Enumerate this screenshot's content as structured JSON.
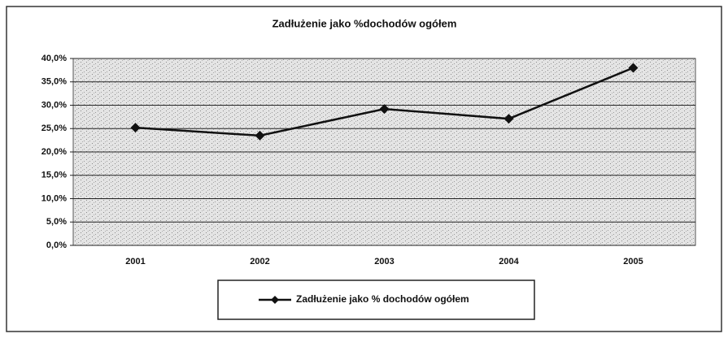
{
  "chart_data": {
    "type": "line",
    "title": "Zadłużenie jako %dochodów ogółem",
    "categories": [
      "2001",
      "2002",
      "2003",
      "2004",
      "2005"
    ],
    "series": [
      {
        "name": "Zadłużenie jako % dochodów ogółem",
        "color": "#111111",
        "values": [
          25.2,
          23.5,
          29.2,
          27.1,
          38.0
        ]
      }
    ],
    "ylim": [
      0,
      40
    ],
    "yticks": [
      {
        "value": 0,
        "label": "0,0%"
      },
      {
        "value": 5,
        "label": "5,0%"
      },
      {
        "value": 10,
        "label": "10,0%"
      },
      {
        "value": 15,
        "label": "15,0%"
      },
      {
        "value": 20,
        "label": "20,0%"
      },
      {
        "value": 25,
        "label": "25,0%"
      },
      {
        "value": 30,
        "label": "30,0%"
      },
      {
        "value": 35,
        "label": "35,0%"
      },
      {
        "value": 40,
        "label": "40,0%"
      }
    ],
    "grid": true,
    "legend": "bottom"
  }
}
